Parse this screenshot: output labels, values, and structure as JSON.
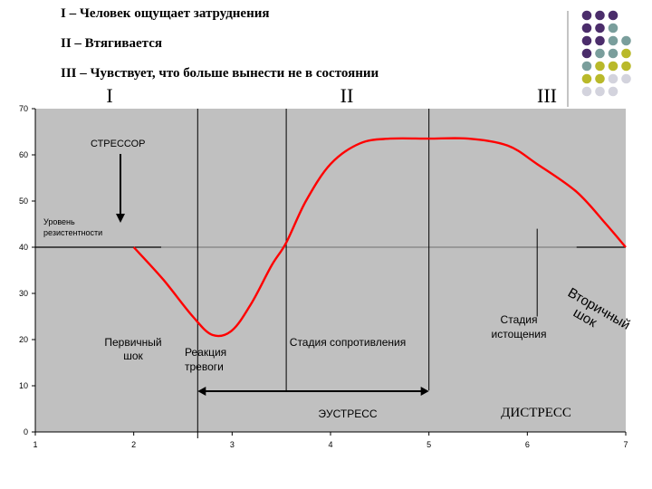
{
  "legend": {
    "line1": "I – Человек ощущает затруднения",
    "line2": "II – Втягивается",
    "line3": "III – Чувствует, что больше вынести не в состоянии"
  },
  "phases": {
    "p1": "I",
    "p2": "II",
    "p3": "III"
  },
  "annotations": {
    "stressor": "СТРЕССОР",
    "resistance_line1": "Уровень",
    "resistance_line2": "резистентности",
    "primary_shock_line1": "Первичный",
    "primary_shock_line2": "шок",
    "alarm_line1": "Реакция",
    "alarm_line2": "тревоги",
    "resistance_stage": "Стадия сопротивления",
    "exhaustion_line1": "Стадия",
    "exhaustion_line2": "истощения",
    "secondary_shock_line1": "Вторичный",
    "secondary_shock_line2": "шок",
    "eustress": "ЭУСТРЕСС",
    "distress": "ДИСТРЕСС"
  },
  "decoration": {
    "dot_colors": [
      "#4b2d6b",
      "#7a9e9c",
      "#b9b92a",
      "#d3d3dd"
    ]
  },
  "chart_data": {
    "type": "line",
    "title": "",
    "xlabel": "",
    "ylabel": "",
    "xlim": [
      1,
      7
    ],
    "ylim": [
      0,
      70
    ],
    "x_ticks": [
      "1",
      "2",
      "3",
      "4",
      "5",
      "6",
      "7"
    ],
    "y_ticks": [
      "0",
      "10",
      "20",
      "30",
      "40",
      "50",
      "60",
      "70"
    ],
    "grid": false,
    "background": "#c0c0c0",
    "line_color": "#ff0000",
    "resistance_level": 40,
    "phase_boundaries_x": [
      2.65,
      3.55,
      5.0,
      6.1
    ],
    "eustress_span_x": [
      2.65,
      5.0
    ],
    "series": [
      {
        "x": [
          2.0,
          2.3,
          2.6,
          2.8,
          3.0,
          3.2,
          3.4,
          3.55,
          3.75,
          4.0,
          4.3,
          4.6,
          5.0,
          5.4,
          5.8,
          6.1,
          6.5,
          6.8,
          7.0
        ],
        "values": [
          40,
          33,
          25,
          21,
          22,
          28,
          36,
          41,
          50,
          58,
          62.5,
          63.5,
          63.5,
          63.5,
          62,
          58,
          52,
          45,
          40
        ]
      }
    ]
  }
}
